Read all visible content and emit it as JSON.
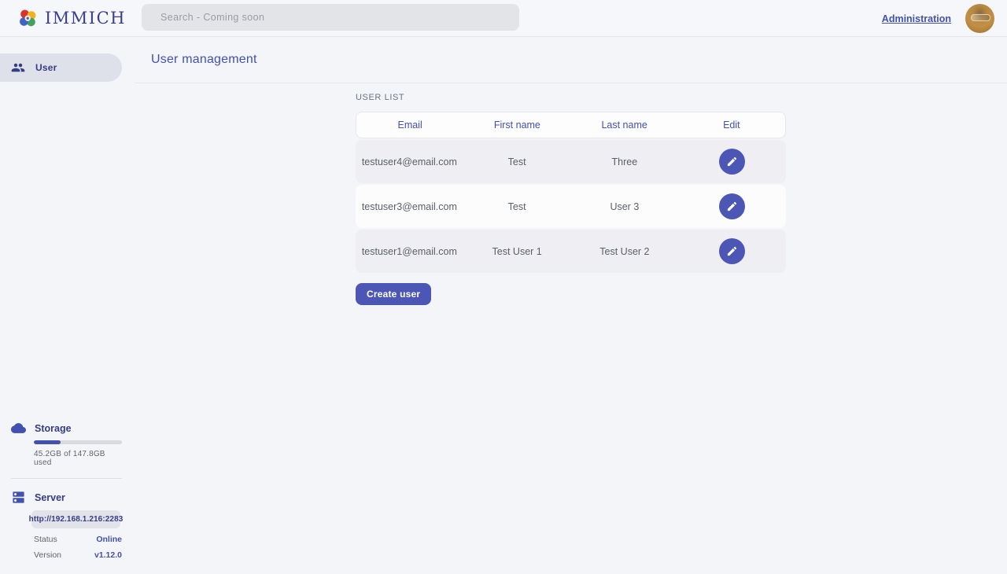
{
  "navbar": {
    "brand": "IMMICH",
    "search_placeholder": "Search - Coming soon",
    "administration_label": "Administration"
  },
  "sidebar": {
    "user_item_label": "User",
    "storage": {
      "title": "Storage",
      "usage_text": "45.2GB of 147.8GB used",
      "percent_used": 30.6
    },
    "server": {
      "title": "Server",
      "url": "http://192.168.1.216:2283",
      "status_label": "Status",
      "status_value": "Online",
      "version_label": "Version",
      "version_value": "v1.12.0"
    }
  },
  "main": {
    "title": "User management",
    "section_title": "USER LIST",
    "table": {
      "columns": [
        "Email",
        "First name",
        "Last name",
        "Edit"
      ],
      "rows": [
        {
          "email": "testuser4@email.com",
          "first_name": "Test",
          "last_name": "Three"
        },
        {
          "email": "testuser3@email.com",
          "first_name": "Test",
          "last_name": "User 3"
        },
        {
          "email": "testuser1@email.com",
          "first_name": "Test User 1",
          "last_name": "Test User 2"
        }
      ]
    },
    "create_user_label": "Create user"
  },
  "colors": {
    "accent": "#4250af",
    "button": "#4c56b5",
    "status_online": "#4250af"
  }
}
